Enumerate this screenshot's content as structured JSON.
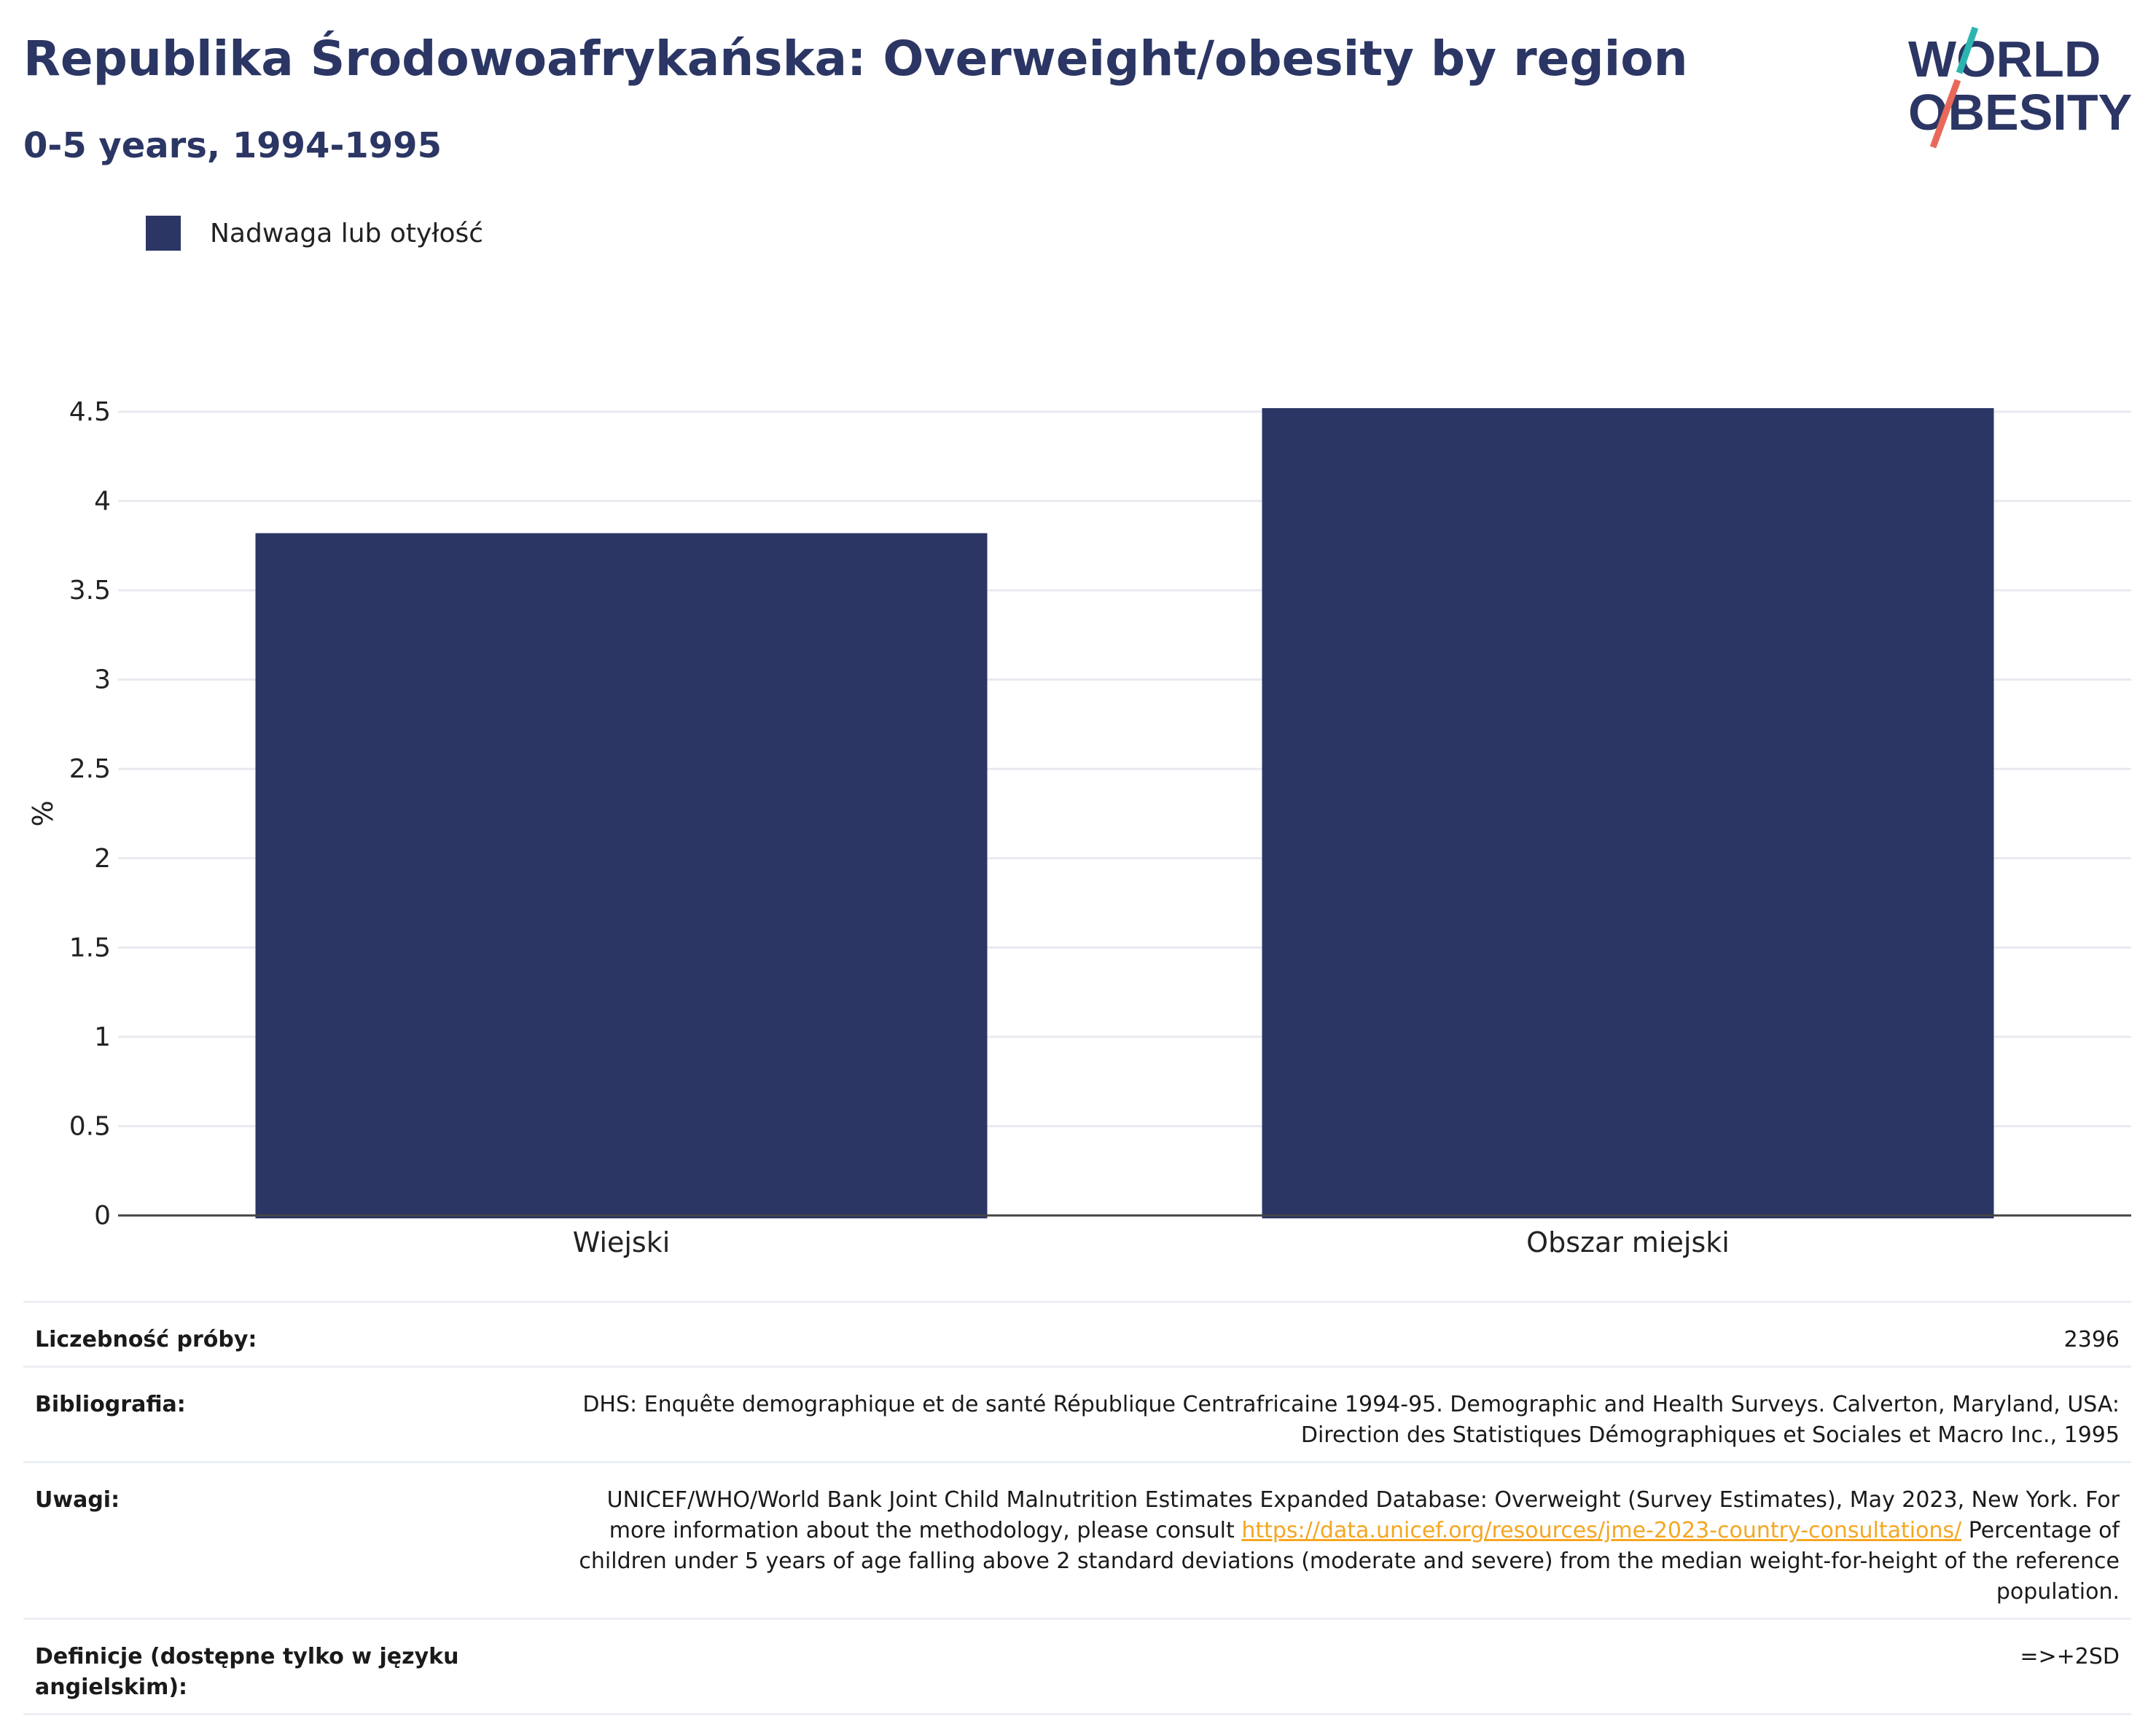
{
  "header": {
    "title": "Republika Środowoafrykańska: Overweight/obesity by region",
    "subtitle": "0-5 years, 1994-1995"
  },
  "logo": {
    "line1": "WORLD",
    "line2": "OBESITY"
  },
  "colors": {
    "bar": "#2b3664",
    "title": "#2b3664",
    "grid": "#e8eaf0",
    "link": "#f5a623"
  },
  "chart_data": {
    "type": "bar",
    "title": "Republika Środowoafrykańska: Overweight/obesity by region",
    "subtitle": "0-5 years, 1994-1995",
    "categories": [
      "Wiejski",
      "Obszar miejski"
    ],
    "series": [
      {
        "name": "Nadwaga lub otyłość",
        "values": [
          3.82,
          4.52
        ]
      }
    ],
    "xlabel": "",
    "ylabel": "%",
    "ylim": [
      0,
      4.5
    ],
    "yticks": [
      "0",
      "0.5",
      "1",
      "1.5",
      "2",
      "2.5",
      "3",
      "3.5",
      "4",
      "4.5"
    ],
    "grid": true,
    "legend": "top-left"
  },
  "info": {
    "sample": {
      "label": "Liczebność próby:",
      "value": "2396"
    },
    "bibliography": {
      "label": "Bibliografia:",
      "value": "DHS: Enquête demographique et de santé République Centrafricaine 1994-95. Demographic and Health Surveys. Calverton, Maryland, USA: Direction des Statistiques Démographiques et Sociales et Macro Inc., 1995"
    },
    "notes": {
      "label": "Uwagi:",
      "text_before": "UNICEF/WHO/World Bank Joint Child Malnutrition Estimates Expanded Database: Overweight (Survey Estimates), May 2023, New York. For more information about the methodology, please consult ",
      "link": "https://data.unicef.org/resources/jme-2023-country-consultations/",
      "text_after": " Percentage of children under 5 years of age falling above 2 standard deviations (moderate and severe) from the median weight-for-height of the reference population."
    },
    "definitions": {
      "label": "Definicje (dostępne tylko w języku angielskim):",
      "value": "=>+2SD"
    }
  }
}
